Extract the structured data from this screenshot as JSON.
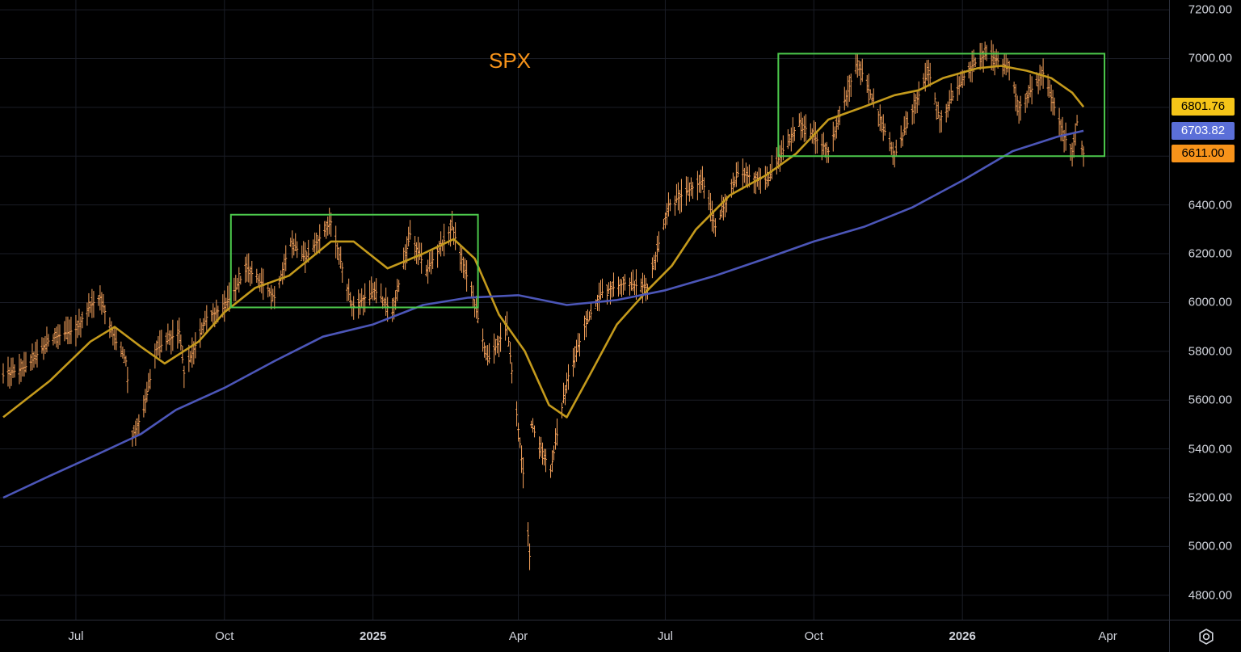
{
  "chart_data": {
    "type": "line",
    "title": "SPX",
    "ylim": [
      4700,
      7240
    ],
    "y_ticks": [
      "4800.00",
      "5000.00",
      "5200.00",
      "5400.00",
      "5600.00",
      "5800.00",
      "6000.00",
      "6200.00",
      "6400.00",
      "6600.00",
      "6800.00",
      "7000.00",
      "7200.00"
    ],
    "y_tick_values": [
      4800,
      5000,
      5200,
      5400,
      5600,
      5800,
      6000,
      6200,
      6400,
      6600,
      6800,
      7000,
      7200
    ],
    "x_ticks": [
      {
        "label": "Jul",
        "date": "2024-07-01",
        "bold": false
      },
      {
        "label": "Oct",
        "date": "2024-10-01",
        "bold": false
      },
      {
        "label": "2025",
        "date": "2025-01-01",
        "bold": true
      },
      {
        "label": "Apr",
        "date": "2025-04-01",
        "bold": false
      },
      {
        "label": "Jul",
        "date": "2025-07-01",
        "bold": false
      },
      {
        "label": "Oct",
        "date": "2025-10-01",
        "bold": false
      },
      {
        "label": "2026",
        "date": "2026-01-01",
        "bold": true
      },
      {
        "label": "Apr",
        "date": "2026-04-01",
        "bold": false
      }
    ],
    "xlim": [
      "2024-05-15",
      "2026-05-09"
    ],
    "price_series": {
      "name": "SPX",
      "color": "#f7a35c",
      "points": [
        [
          "2024-05-17",
          5700
        ],
        [
          "2024-06-01",
          5740
        ],
        [
          "2024-06-15",
          5850
        ],
        [
          "2024-07-01",
          5890
        ],
        [
          "2024-07-10",
          5990
        ],
        [
          "2024-07-16",
          6020
        ],
        [
          "2024-07-25",
          5850
        ],
        [
          "2024-08-01",
          5760
        ],
        [
          "2024-08-05",
          5450
        ],
        [
          "2024-08-12",
          5560
        ],
        [
          "2024-08-20",
          5810
        ],
        [
          "2024-09-03",
          5880
        ],
        [
          "2024-09-06",
          5710
        ],
        [
          "2024-09-20",
          5940
        ],
        [
          "2024-10-01",
          5980
        ],
        [
          "2024-10-15",
          6140
        ],
        [
          "2024-11-01",
          6020
        ],
        [
          "2024-11-11",
          6250
        ],
        [
          "2024-11-20",
          6180
        ],
        [
          "2024-12-06",
          6330
        ],
        [
          "2024-12-19",
          5980
        ],
        [
          "2025-01-02",
          6050
        ],
        [
          "2025-01-13",
          5960
        ],
        [
          "2025-01-24",
          6280
        ],
        [
          "2025-02-03",
          6130
        ],
        [
          "2025-02-19",
          6310
        ],
        [
          "2025-03-04",
          6020
        ],
        [
          "2025-03-13",
          5760
        ],
        [
          "2025-03-25",
          5900
        ],
        [
          "2025-04-04",
          5300
        ],
        [
          "2025-04-08",
          4960
        ],
        [
          "2025-04-09",
          5500
        ],
        [
          "2025-04-21",
          5310
        ],
        [
          "2025-05-01",
          5680
        ],
        [
          "2025-05-12",
          5900
        ],
        [
          "2025-05-22",
          6040
        ],
        [
          "2025-06-06",
          6080
        ],
        [
          "2025-06-20",
          6060
        ],
        [
          "2025-07-03",
          6400
        ],
        [
          "2025-07-24",
          6500
        ],
        [
          "2025-08-01",
          6310
        ],
        [
          "2025-08-15",
          6530
        ],
        [
          "2025-09-02",
          6500
        ],
        [
          "2025-09-10",
          6600
        ],
        [
          "2025-09-22",
          6740
        ],
        [
          "2025-10-10",
          6620
        ],
        [
          "2025-10-28",
          6990
        ],
        [
          "2025-11-20",
          6600
        ],
        [
          "2025-12-11",
          6950
        ],
        [
          "2025-12-18",
          6750
        ],
        [
          "2026-01-05",
          6960
        ],
        [
          "2026-01-16",
          7020
        ],
        [
          "2026-01-30",
          6960
        ],
        [
          "2026-02-05",
          6800
        ],
        [
          "2026-02-20",
          6940
        ],
        [
          "2026-03-05",
          6680
        ],
        [
          "2026-03-10",
          6620
        ],
        [
          "2026-03-13",
          6740
        ],
        [
          "2026-03-17",
          6611
        ]
      ]
    },
    "series": [
      {
        "color": "#c49a1c",
        "current_value": 6801.76,
        "points": [
          [
            "2024-05-17",
            5530
          ],
          [
            "2024-06-15",
            5680
          ],
          [
            "2024-07-10",
            5840
          ],
          [
            "2024-07-25",
            5900
          ],
          [
            "2024-08-10",
            5820
          ],
          [
            "2024-08-25",
            5750
          ],
          [
            "2024-09-15",
            5840
          ],
          [
            "2024-10-01",
            5960
          ],
          [
            "2024-10-20",
            6060
          ],
          [
            "2024-11-10",
            6110
          ],
          [
            "2024-12-06",
            6250
          ],
          [
            "2024-12-20",
            6250
          ],
          [
            "2025-01-10",
            6140
          ],
          [
            "2025-02-01",
            6200
          ],
          [
            "2025-02-20",
            6260
          ],
          [
            "2025-03-05",
            6180
          ],
          [
            "2025-03-20",
            5950
          ],
          [
            "2025-04-05",
            5800
          ],
          [
            "2025-04-20",
            5580
          ],
          [
            "2025-05-01",
            5530
          ],
          [
            "2025-05-15",
            5700
          ],
          [
            "2025-06-01",
            5910
          ],
          [
            "2025-06-20",
            6050
          ],
          [
            "2025-07-05",
            6150
          ],
          [
            "2025-07-20",
            6300
          ],
          [
            "2025-08-10",
            6440
          ],
          [
            "2025-09-01",
            6520
          ],
          [
            "2025-09-20",
            6610
          ],
          [
            "2025-10-10",
            6750
          ],
          [
            "2025-10-31",
            6800
          ],
          [
            "2025-11-20",
            6850
          ],
          [
            "2025-12-05",
            6870
          ],
          [
            "2025-12-20",
            6920
          ],
          [
            "2026-01-10",
            6960
          ],
          [
            "2026-01-25",
            6970
          ],
          [
            "2026-02-10",
            6950
          ],
          [
            "2026-02-25",
            6920
          ],
          [
            "2026-03-10",
            6860
          ],
          [
            "2026-03-17",
            6801.76
          ]
        ]
      },
      {
        "color": "#4c56b8",
        "current_value": 6703.82,
        "points": [
          [
            "2024-05-17",
            5200
          ],
          [
            "2024-06-15",
            5290
          ],
          [
            "2024-07-15",
            5380
          ],
          [
            "2024-08-10",
            5460
          ],
          [
            "2024-09-01",
            5560
          ],
          [
            "2024-10-01",
            5650
          ],
          [
            "2024-11-01",
            5760
          ],
          [
            "2024-12-01",
            5860
          ],
          [
            "2025-01-01",
            5910
          ],
          [
            "2025-02-01",
            5990
          ],
          [
            "2025-03-01",
            6020
          ],
          [
            "2025-04-01",
            6030
          ],
          [
            "2025-05-01",
            5990
          ],
          [
            "2025-06-01",
            6010
          ],
          [
            "2025-07-01",
            6050
          ],
          [
            "2025-08-01",
            6110
          ],
          [
            "2025-09-01",
            6180
          ],
          [
            "2025-10-01",
            6250
          ],
          [
            "2025-11-01",
            6310
          ],
          [
            "2025-12-01",
            6390
          ],
          [
            "2026-01-01",
            6500
          ],
          [
            "2026-02-01",
            6620
          ],
          [
            "2026-03-01",
            6680
          ],
          [
            "2026-03-17",
            6703.82
          ]
        ]
      }
    ],
    "price_badges": [
      {
        "value": "6801.76",
        "bg": "#f5c518",
        "color": "#000000"
      },
      {
        "value": "6703.82",
        "bg": "#5b6fd8",
        "color": "#ffffff"
      },
      {
        "value": "6611.00",
        "bg": "#f7931a",
        "color": "#000000"
      }
    ],
    "boxes": [
      {
        "x0": "2024-10-05",
        "x1": "2025-03-07",
        "y0": 5980,
        "y1": 6360,
        "color": "#4cc94c"
      },
      {
        "x0": "2025-09-09",
        "x1": "2026-03-30",
        "y0": 6600,
        "y1": 7020,
        "color": "#4cc94c"
      }
    ],
    "grid": true
  },
  "settings_icon": "gear-icon"
}
